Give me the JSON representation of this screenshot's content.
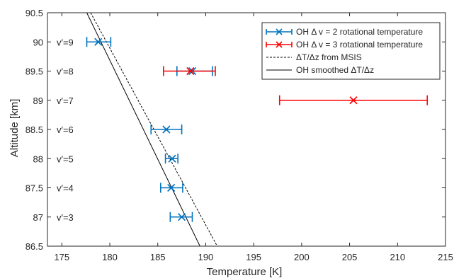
{
  "chart_data": {
    "type": "scatter",
    "xlabel": "Temperature [K]",
    "ylabel": "Altitude [km]",
    "xlim": [
      173.5,
      215
    ],
    "ylim": [
      86.5,
      90.5
    ],
    "xticks": [
      175,
      180,
      185,
      190,
      195,
      200,
      205,
      210,
      215
    ],
    "yticks": [
      86.5,
      87,
      87.5,
      88,
      88.5,
      89,
      89.5,
      90,
      90.5
    ],
    "xtick_labels": [
      "175",
      "180",
      "185",
      "190",
      "195",
      "200",
      "205",
      "210",
      "215"
    ],
    "ytick_labels": [
      "86.5",
      "87",
      "87.5",
      "88",
      "88.5",
      "89",
      "89.5",
      "90",
      "90.5"
    ],
    "grid": false,
    "legend_position": "top-right",
    "level_labels": [
      {
        "text": "v′=9",
        "y": 90
      },
      {
        "text": "v′=8",
        "y": 89.5
      },
      {
        "text": "v′=7",
        "y": 89
      },
      {
        "text": "v′=6",
        "y": 88.5
      },
      {
        "text": "v′=5",
        "y": 88
      },
      {
        "text": "v′=4",
        "y": 87.5
      },
      {
        "text": "v′=3",
        "y": 87
      }
    ],
    "series": [
      {
        "name": "OH Δ v = 2 rotational temperature",
        "kind": "errorbar",
        "color": "#0072BD",
        "points": [
          {
            "x": 178.8,
            "y": 90,
            "xmin": 177.6,
            "xmax": 180.1
          },
          {
            "x": 188.6,
            "y": 89.5,
            "xmin": 187.0,
            "xmax": 190.7
          },
          {
            "x": 185.9,
            "y": 88.5,
            "xmin": 184.3,
            "xmax": 187.5
          },
          {
            "x": 186.5,
            "y": 88,
            "xmin": 185.8,
            "xmax": 187.1
          },
          {
            "x": 186.4,
            "y": 87.5,
            "xmin": 185.3,
            "xmax": 187.6
          },
          {
            "x": 187.5,
            "y": 87,
            "xmin": 186.3,
            "xmax": 188.6
          }
        ]
      },
      {
        "name": "OH Δ v = 3 rotational temperature",
        "kind": "errorbar",
        "color": "#FF0000",
        "points": [
          {
            "x": 188.4,
            "y": 89.5,
            "xmin": 185.6,
            "xmax": 191.0
          },
          {
            "x": 205.4,
            "y": 89,
            "xmin": 197.7,
            "xmax": 213.1
          }
        ]
      },
      {
        "name": "ΔT/Δz from MSIS",
        "kind": "line",
        "dash": "dashed",
        "color": "#000000",
        "points": [
          {
            "x": 178.0,
            "y": 90.5
          },
          {
            "x": 191.2,
            "y": 86.5
          }
        ]
      },
      {
        "name": "OH smoothed ΔT/Δz",
        "kind": "line",
        "dash": "solid",
        "color": "#000000",
        "points": [
          {
            "x": 177.6,
            "y": 90.5
          },
          {
            "x": 189.4,
            "y": 86.5
          }
        ]
      }
    ]
  }
}
